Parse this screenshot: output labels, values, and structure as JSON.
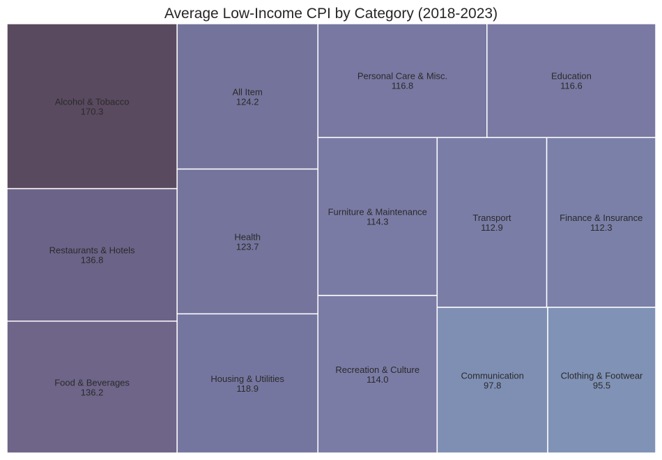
{
  "chart_data": {
    "type": "treemap",
    "title": "Average Low-Income CPI by Category (2018-2023)",
    "items": [
      {
        "label": "Alcohol & Tobacco",
        "value": 170.3,
        "color": "#5a4a60"
      },
      {
        "label": "Restaurants & Hotels",
        "value": 136.8,
        "color": "#6c6388"
      },
      {
        "label": "Food & Beverages",
        "value": 136.2,
        "color": "#6e6589"
      },
      {
        "label": "All Item",
        "value": 124.2,
        "color": "#74739b"
      },
      {
        "label": "Health",
        "value": 123.7,
        "color": "#74749c"
      },
      {
        "label": "Housing & Utilities",
        "value": 118.9,
        "color": "#7576a0"
      },
      {
        "label": "Personal Care & Misc.",
        "value": 116.8,
        "color": "#7878a2"
      },
      {
        "label": "Education",
        "value": 116.6,
        "color": "#7979a3"
      },
      {
        "label": "Furniture & Maintenance",
        "value": 114.3,
        "color": "#7a7ba5"
      },
      {
        "label": "Recreation & Culture",
        "value": 114.0,
        "color": "#7a7ca6"
      },
      {
        "label": "Transport",
        "value": 112.9,
        "color": "#7a7da6"
      },
      {
        "label": "Finance & Insurance",
        "value": 112.3,
        "color": "#7a80a8"
      },
      {
        "label": "Communication",
        "value": 97.8,
        "color": "#7f8fb4"
      },
      {
        "label": "Clothing & Footwear",
        "value": 95.5,
        "color": "#8092b6"
      }
    ]
  }
}
